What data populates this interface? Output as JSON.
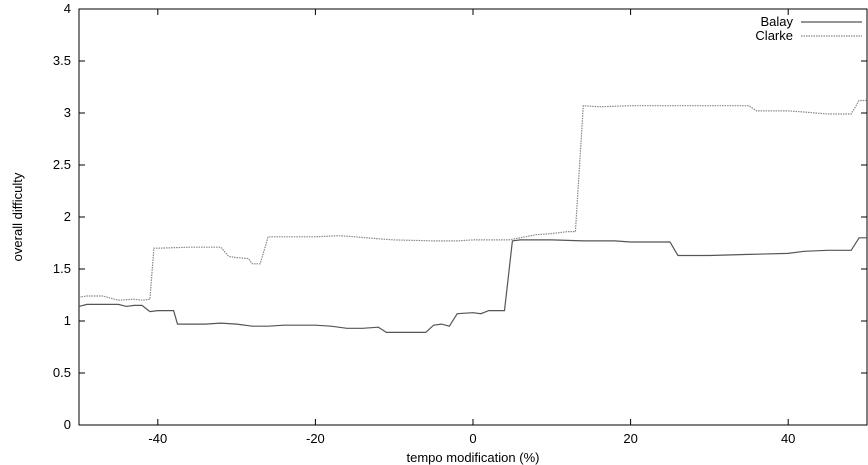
{
  "chart_data": {
    "type": "line",
    "title": "",
    "xlabel": "tempo modification (%)",
    "ylabel": "overall difficulty",
    "xlim": [
      -50,
      50
    ],
    "ylim": [
      0,
      4
    ],
    "xticks": [
      -40,
      -20,
      0,
      20,
      40
    ],
    "yticks": [
      0,
      0.5,
      1,
      1.5,
      2,
      2.5,
      3,
      3.5,
      4
    ],
    "xtick_labels": [
      "-40",
      "-20",
      "0",
      "20",
      "40"
    ],
    "ytick_labels": [
      "0",
      "0.5",
      "1",
      "1.5",
      "2",
      "2.5",
      "3",
      "3.5",
      "4"
    ],
    "grid": false,
    "legend_position": "top-right",
    "series": [
      {
        "name": "Balay",
        "color": "#555555",
        "dash": "solid",
        "x": [
          -50,
          -49,
          -47,
          -45,
          -44,
          -43,
          -42,
          -41,
          -40,
          -38,
          -37.5,
          -36,
          -34,
          -32,
          -30,
          -28,
          -26,
          -24,
          -22,
          -20,
          -18,
          -16,
          -14,
          -12,
          -11,
          -10,
          -8,
          -6,
          -5,
          -4,
          -3,
          -2,
          0,
          1,
          2,
          4,
          5,
          6,
          7,
          10,
          14,
          16,
          18,
          20,
          22,
          24,
          25,
          26,
          28,
          30,
          35,
          40,
          42,
          45,
          48,
          49,
          50
        ],
        "y": [
          1.14,
          1.16,
          1.16,
          1.16,
          1.14,
          1.15,
          1.15,
          1.09,
          1.1,
          1.1,
          0.97,
          0.97,
          0.97,
          0.98,
          0.97,
          0.95,
          0.95,
          0.96,
          0.96,
          0.96,
          0.95,
          0.93,
          0.93,
          0.94,
          0.89,
          0.89,
          0.89,
          0.89,
          0.96,
          0.97,
          0.95,
          1.07,
          1.08,
          1.07,
          1.1,
          1.1,
          1.77,
          1.78,
          1.78,
          1.78,
          1.77,
          1.77,
          1.77,
          1.76,
          1.76,
          1.76,
          1.76,
          1.63,
          1.63,
          1.63,
          1.64,
          1.65,
          1.67,
          1.68,
          1.68,
          1.8,
          1.8
        ]
      },
      {
        "name": "Clarke",
        "color": "#888888",
        "dash": "dotted",
        "x": [
          -50,
          -49,
          -47,
          -46,
          -45,
          -43,
          -42,
          -41,
          -40.5,
          -40,
          -36,
          -34,
          -32,
          -31,
          -30,
          -28.5,
          -28,
          -27,
          -26,
          -25,
          -20,
          -17,
          -15,
          -12,
          -10,
          -5,
          -2,
          0,
          3,
          4.5,
          6,
          8,
          10,
          12,
          13,
          14,
          16,
          20,
          25,
          30,
          35,
          36,
          40,
          42,
          45,
          48,
          49,
          50
        ],
        "y": [
          1.23,
          1.24,
          1.24,
          1.22,
          1.2,
          1.21,
          1.2,
          1.21,
          1.7,
          1.7,
          1.71,
          1.71,
          1.71,
          1.62,
          1.61,
          1.6,
          1.55,
          1.55,
          1.81,
          1.81,
          1.81,
          1.82,
          1.81,
          1.79,
          1.78,
          1.77,
          1.77,
          1.78,
          1.78,
          1.78,
          1.8,
          1.83,
          1.84,
          1.86,
          1.86,
          3.07,
          3.06,
          3.07,
          3.07,
          3.07,
          3.07,
          3.02,
          3.02,
          3.01,
          2.99,
          2.99,
          3.12,
          3.12
        ]
      }
    ]
  }
}
